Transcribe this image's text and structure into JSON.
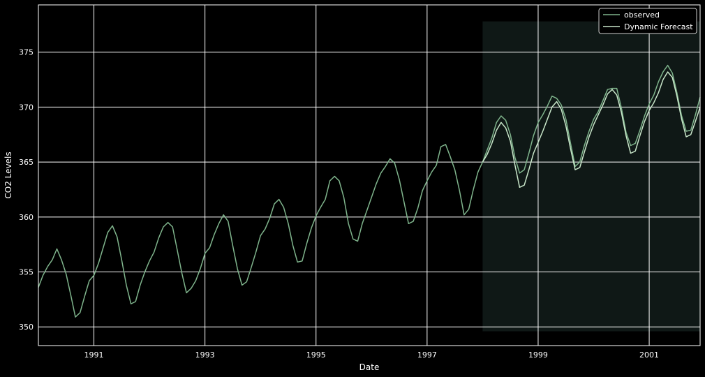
{
  "chart_data": {
    "type": "line",
    "title": "",
    "xlabel": "Date",
    "ylabel": "CO2 Levels",
    "xlim": [
      1990.0,
      2001.917
    ],
    "ylim": [
      348.3,
      379.3
    ],
    "x_ticks": [
      "1991",
      "1993",
      "1995",
      "1997",
      "1999",
      "2001"
    ],
    "y_ticks": [
      "350",
      "355",
      "360",
      "365",
      "370",
      "375"
    ],
    "grid": true,
    "legend_position": "top-right",
    "forecast_region": {
      "x_start": 1998.0,
      "x_end": 2001.917,
      "y_start": 349.6,
      "y_end": 377.8
    },
    "colors": {
      "background": "#000000",
      "grid": "#ffffff",
      "observed": "#7fb48c",
      "forecast": "#c8e6c9",
      "forecast_band": "#0f1816"
    },
    "series": [
      {
        "name": "observed",
        "x_start": 1990.0,
        "x_step_months": 1,
        "values": [
          353.6,
          354.7,
          355.5,
          356.1,
          357.1,
          356.1,
          354.8,
          352.9,
          350.9,
          351.3,
          352.8,
          354.2,
          354.7,
          355.8,
          357.2,
          358.6,
          359.2,
          358.2,
          356.1,
          353.8,
          352.1,
          352.3,
          353.8,
          355.0,
          356.0,
          356.8,
          358.1,
          359.1,
          359.5,
          359.1,
          357.0,
          354.9,
          353.1,
          353.5,
          354.2,
          355.3,
          356.7,
          357.2,
          358.4,
          359.4,
          360.2,
          359.6,
          357.4,
          355.3,
          353.8,
          354.1,
          355.4,
          356.8,
          358.3,
          358.9,
          359.9,
          361.2,
          361.6,
          360.9,
          359.4,
          357.4,
          355.9,
          356.0,
          357.6,
          359.0,
          360.1,
          360.9,
          361.6,
          363.3,
          363.7,
          363.3,
          361.8,
          359.4,
          358.0,
          357.8,
          359.4,
          360.6,
          361.8,
          363.0,
          364.0,
          364.6,
          365.3,
          364.9,
          363.4,
          361.4,
          359.4,
          359.6,
          360.8,
          362.4,
          363.3,
          364.1,
          364.7,
          366.4,
          366.6,
          365.5,
          364.3,
          362.4,
          360.2,
          360.7,
          362.5,
          364.1,
          365.0,
          366.1,
          367.2,
          368.6,
          369.2,
          368.8,
          367.5,
          365.4,
          364.0,
          364.3,
          365.8,
          367.4,
          368.6,
          369.3,
          370.1,
          371.0,
          370.8,
          370.2,
          368.9,
          366.7,
          364.6,
          365.0,
          366.5,
          367.8,
          368.9,
          369.6,
          370.6,
          371.6,
          371.7,
          371.7,
          369.9,
          367.7,
          366.5,
          366.7,
          367.9,
          369.2,
          370.3,
          371.1,
          372.3,
          373.2,
          373.8,
          373.1,
          371.3,
          369.2,
          367.8,
          367.9,
          369.3,
          370.9
        ]
      },
      {
        "name": "Dynamic Forecast",
        "x_start": 1998.0,
        "x_step_months": 1,
        "values": [
          365.0,
          365.7,
          366.7,
          367.9,
          368.6,
          368.1,
          366.9,
          364.7,
          362.7,
          362.9,
          364.3,
          365.8,
          366.8,
          367.8,
          368.9,
          370.0,
          370.5,
          369.8,
          368.3,
          366.2,
          364.3,
          364.5,
          365.9,
          367.3,
          368.4,
          369.3,
          370.2,
          371.2,
          371.6,
          371.1,
          369.5,
          367.4,
          365.8,
          366.0,
          367.4,
          368.7,
          369.7,
          370.4,
          371.3,
          372.5,
          373.2,
          372.7,
          371.0,
          368.9,
          367.3,
          367.5,
          368.7,
          370.0
        ]
      }
    ]
  }
}
